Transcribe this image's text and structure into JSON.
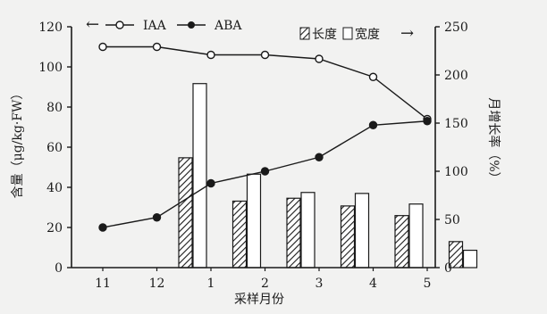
{
  "chart_data": {
    "type": "bar",
    "categories": [
      "11",
      "12",
      "1",
      "2",
      "3",
      "4",
      "5"
    ],
    "xlabel": "采样月份",
    "ylabel_left": "含量（μg/kg·FW）",
    "ylabel_right": "月增长率（%）",
    "y_left": {
      "lim": [
        0,
        120
      ],
      "ticks": [
        "0",
        "20",
        "40",
        "60",
        "80",
        "100",
        "120"
      ]
    },
    "y_right": {
      "lim": [
        0,
        250
      ],
      "ticks": [
        "0",
        "50",
        "100",
        "150",
        "200",
        "250"
      ]
    },
    "line_series": [
      {
        "name": "IAA",
        "axis": "left",
        "marker": "open-circle",
        "x": [
          "11",
          "12",
          "1",
          "2",
          "3",
          "4",
          "5"
        ],
        "values": [
          110,
          110,
          106,
          106,
          104,
          95,
          74
        ]
      },
      {
        "name": "ABA",
        "axis": "left",
        "marker": "filled-circle",
        "x": [
          "11",
          "12",
          "1",
          "2",
          "3",
          "4",
          "5"
        ],
        "values": [
          20,
          25,
          42,
          48,
          55,
          71,
          73
        ]
      }
    ],
    "bar_series": [
      {
        "name": "长度",
        "axis": "right",
        "pattern": "hatched",
        "x": [
          "12",
          "1",
          "2",
          "3",
          "4",
          "5"
        ],
        "values": [
          114,
          69,
          72,
          64,
          54,
          27
        ]
      },
      {
        "name": "宽度",
        "axis": "right",
        "pattern": "open",
        "x": [
          "12",
          "1",
          "2",
          "3",
          "4",
          "5"
        ],
        "values": [
          191,
          97,
          78,
          77,
          66,
          18
        ]
      }
    ],
    "legend": {
      "left_arrow": "←",
      "right_arrow": "→",
      "iaa": "IAA",
      "aba": "ABA",
      "length": "长度",
      "width": "宽度"
    },
    "grid": false
  }
}
